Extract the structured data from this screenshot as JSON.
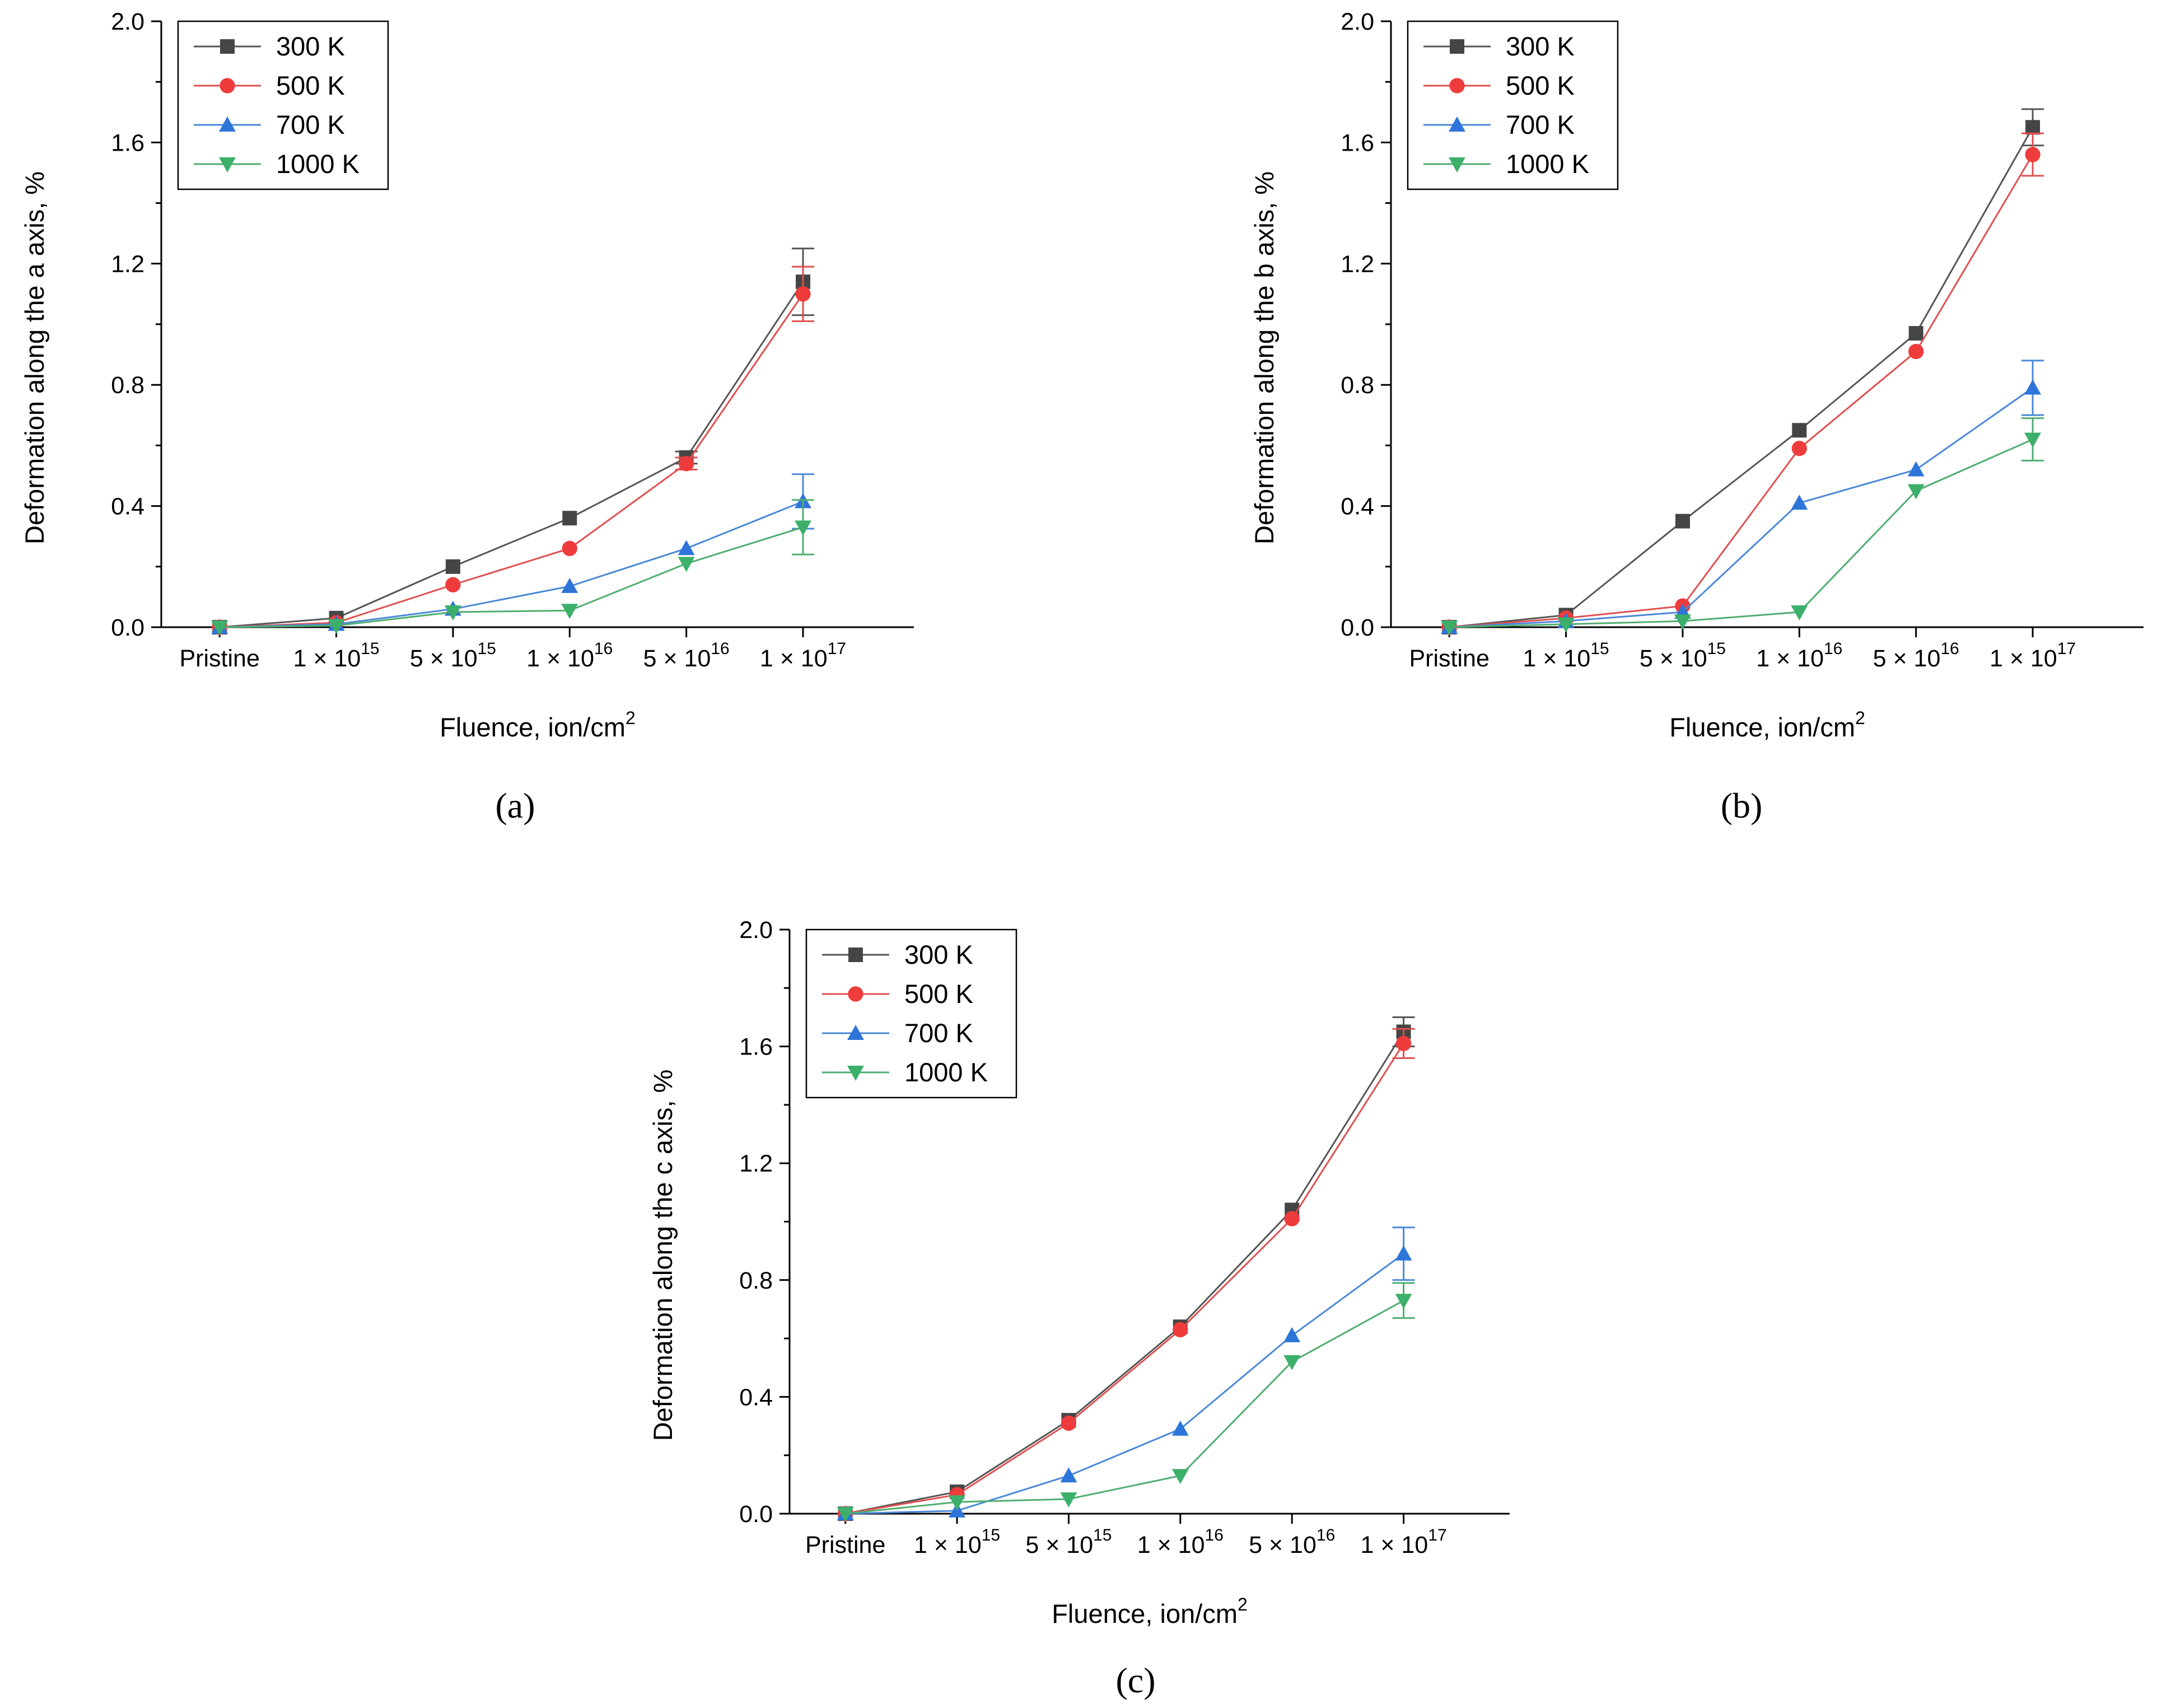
{
  "chart_data": [
    {
      "panel": "(a)",
      "type": "line",
      "title": "",
      "xlabel": "Fluence, ion/cm",
      "xlabel_sup": "2",
      "ylabel": "Deformation along the a axis, %",
      "ylim": [
        0,
        2.0
      ],
      "yticks": [
        "0.0",
        "0.4",
        "0.8",
        "1.2",
        "1.6",
        "2.0"
      ],
      "ytick_values": [
        0,
        0.4,
        0.8,
        1.2,
        1.6,
        2.0
      ],
      "grid": false,
      "legend": "top-left",
      "categories": [
        {
          "base": "Pristine",
          "exp": ""
        },
        {
          "base": "1 × 10",
          "exp": "15"
        },
        {
          "base": "5 × 10",
          "exp": "15"
        },
        {
          "base": "1 × 10",
          "exp": "16"
        },
        {
          "base": "5 × 10",
          "exp": "16"
        },
        {
          "base": "1 × 10",
          "exp": "17"
        }
      ],
      "series": [
        {
          "name": "300 K",
          "values": [
            0,
            0.03,
            0.2,
            0.36,
            0.56,
            1.14
          ],
          "errors": [
            0,
            0,
            0,
            0,
            0.02,
            0.11
          ]
        },
        {
          "name": "500 K",
          "values": [
            0,
            0.015,
            0.14,
            0.26,
            0.54,
            1.1
          ],
          "errors": [
            0,
            0,
            0,
            0,
            0.02,
            0.09
          ]
        },
        {
          "name": "700 K",
          "values": [
            0,
            0.01,
            0.06,
            0.135,
            0.26,
            0.415
          ],
          "errors": [
            0,
            0,
            0,
            0,
            0,
            0.09
          ]
        },
        {
          "name": "1000 K",
          "values": [
            0,
            0.005,
            0.05,
            0.055,
            0.21,
            0.33
          ],
          "errors": [
            0,
            0,
            0,
            0,
            0,
            0.09
          ]
        }
      ]
    },
    {
      "panel": "(b)",
      "type": "line",
      "title": "",
      "xlabel": "Fluence, ion/cm",
      "xlabel_sup": "2",
      "ylabel": "Deformation along the b axis, %",
      "ylim": [
        0,
        2.0
      ],
      "yticks": [
        "0.0",
        "0.4",
        "0.8",
        "1.2",
        "1.6",
        "2.0"
      ],
      "ytick_values": [
        0,
        0.4,
        0.8,
        1.2,
        1.6,
        2.0
      ],
      "grid": false,
      "legend": "top-left",
      "categories": [
        {
          "base": "Pristine",
          "exp": ""
        },
        {
          "base": "1 × 10",
          "exp": "15"
        },
        {
          "base": "5 × 10",
          "exp": "15"
        },
        {
          "base": "1 × 10",
          "exp": "16"
        },
        {
          "base": "5 × 10",
          "exp": "16"
        },
        {
          "base": "1 × 10",
          "exp": "17"
        }
      ],
      "series": [
        {
          "name": "300 K",
          "values": [
            0,
            0.04,
            0.35,
            0.65,
            0.97,
            1.65
          ],
          "errors": [
            0,
            0,
            0,
            0,
            0,
            0.06
          ]
        },
        {
          "name": "500 K",
          "values": [
            0,
            0.03,
            0.07,
            0.59,
            0.91,
            1.56
          ],
          "errors": [
            0,
            0,
            0,
            0,
            0,
            0.07
          ]
        },
        {
          "name": "700 K",
          "values": [
            0,
            0.02,
            0.05,
            0.41,
            0.52,
            0.79
          ],
          "errors": [
            0,
            0,
            0,
            0,
            0,
            0.09
          ]
        },
        {
          "name": "1000 K",
          "values": [
            0,
            0.01,
            0.02,
            0.05,
            0.45,
            0.62
          ],
          "errors": [
            0,
            0,
            0,
            0,
            0,
            0.07
          ]
        }
      ]
    },
    {
      "panel": "(c)",
      "type": "line",
      "title": "",
      "xlabel": "Fluence, ion/cm",
      "xlabel_sup": "2",
      "ylabel": "Deformation along the c axis, %",
      "ylim": [
        0,
        2.0
      ],
      "yticks": [
        "0.0",
        "0.4",
        "0.8",
        "1.2",
        "1.6",
        "2.0"
      ],
      "ytick_values": [
        0,
        0.4,
        0.8,
        1.2,
        1.6,
        2.0
      ],
      "grid": false,
      "legend": "top-left",
      "categories": [
        {
          "base": "Pristine",
          "exp": ""
        },
        {
          "base": "1 × 10",
          "exp": "15"
        },
        {
          "base": "5 × 10",
          "exp": "15"
        },
        {
          "base": "1 × 10",
          "exp": "16"
        },
        {
          "base": "5 × 10",
          "exp": "16"
        },
        {
          "base": "1 × 10",
          "exp": "17"
        }
      ],
      "series": [
        {
          "name": "300 K",
          "values": [
            0,
            0.075,
            0.32,
            0.64,
            1.04,
            1.65
          ],
          "errors": [
            0,
            0,
            0,
            0,
            0,
            0.05
          ]
        },
        {
          "name": "500 K",
          "values": [
            0,
            0.065,
            0.31,
            0.63,
            1.01,
            1.61
          ],
          "errors": [
            0,
            0,
            0,
            0,
            0,
            0.05
          ]
        },
        {
          "name": "700 K",
          "values": [
            0,
            0.01,
            0.13,
            0.29,
            0.61,
            0.89
          ],
          "errors": [
            0,
            0,
            0,
            0,
            0,
            0.09
          ]
        },
        {
          "name": "1000 K",
          "values": [
            0,
            0.04,
            0.05,
            0.13,
            0.52,
            0.73
          ],
          "errors": [
            0,
            0,
            0,
            0,
            0,
            0.06
          ]
        }
      ]
    }
  ],
  "series_style": [
    {
      "name": "300 K",
      "line": "#555555",
      "marker": "square",
      "fill": "#454545"
    },
    {
      "name": "500 K",
      "line": "#e05050",
      "marker": "circle",
      "fill": "#ee3b3b"
    },
    {
      "name": "700 K",
      "line": "#4a88d8",
      "marker": "triangle-up",
      "fill": "#2e75d9"
    },
    {
      "name": "1000 K",
      "line": "#4fae70",
      "marker": "triangle-down",
      "fill": "#3cb06a"
    }
  ]
}
